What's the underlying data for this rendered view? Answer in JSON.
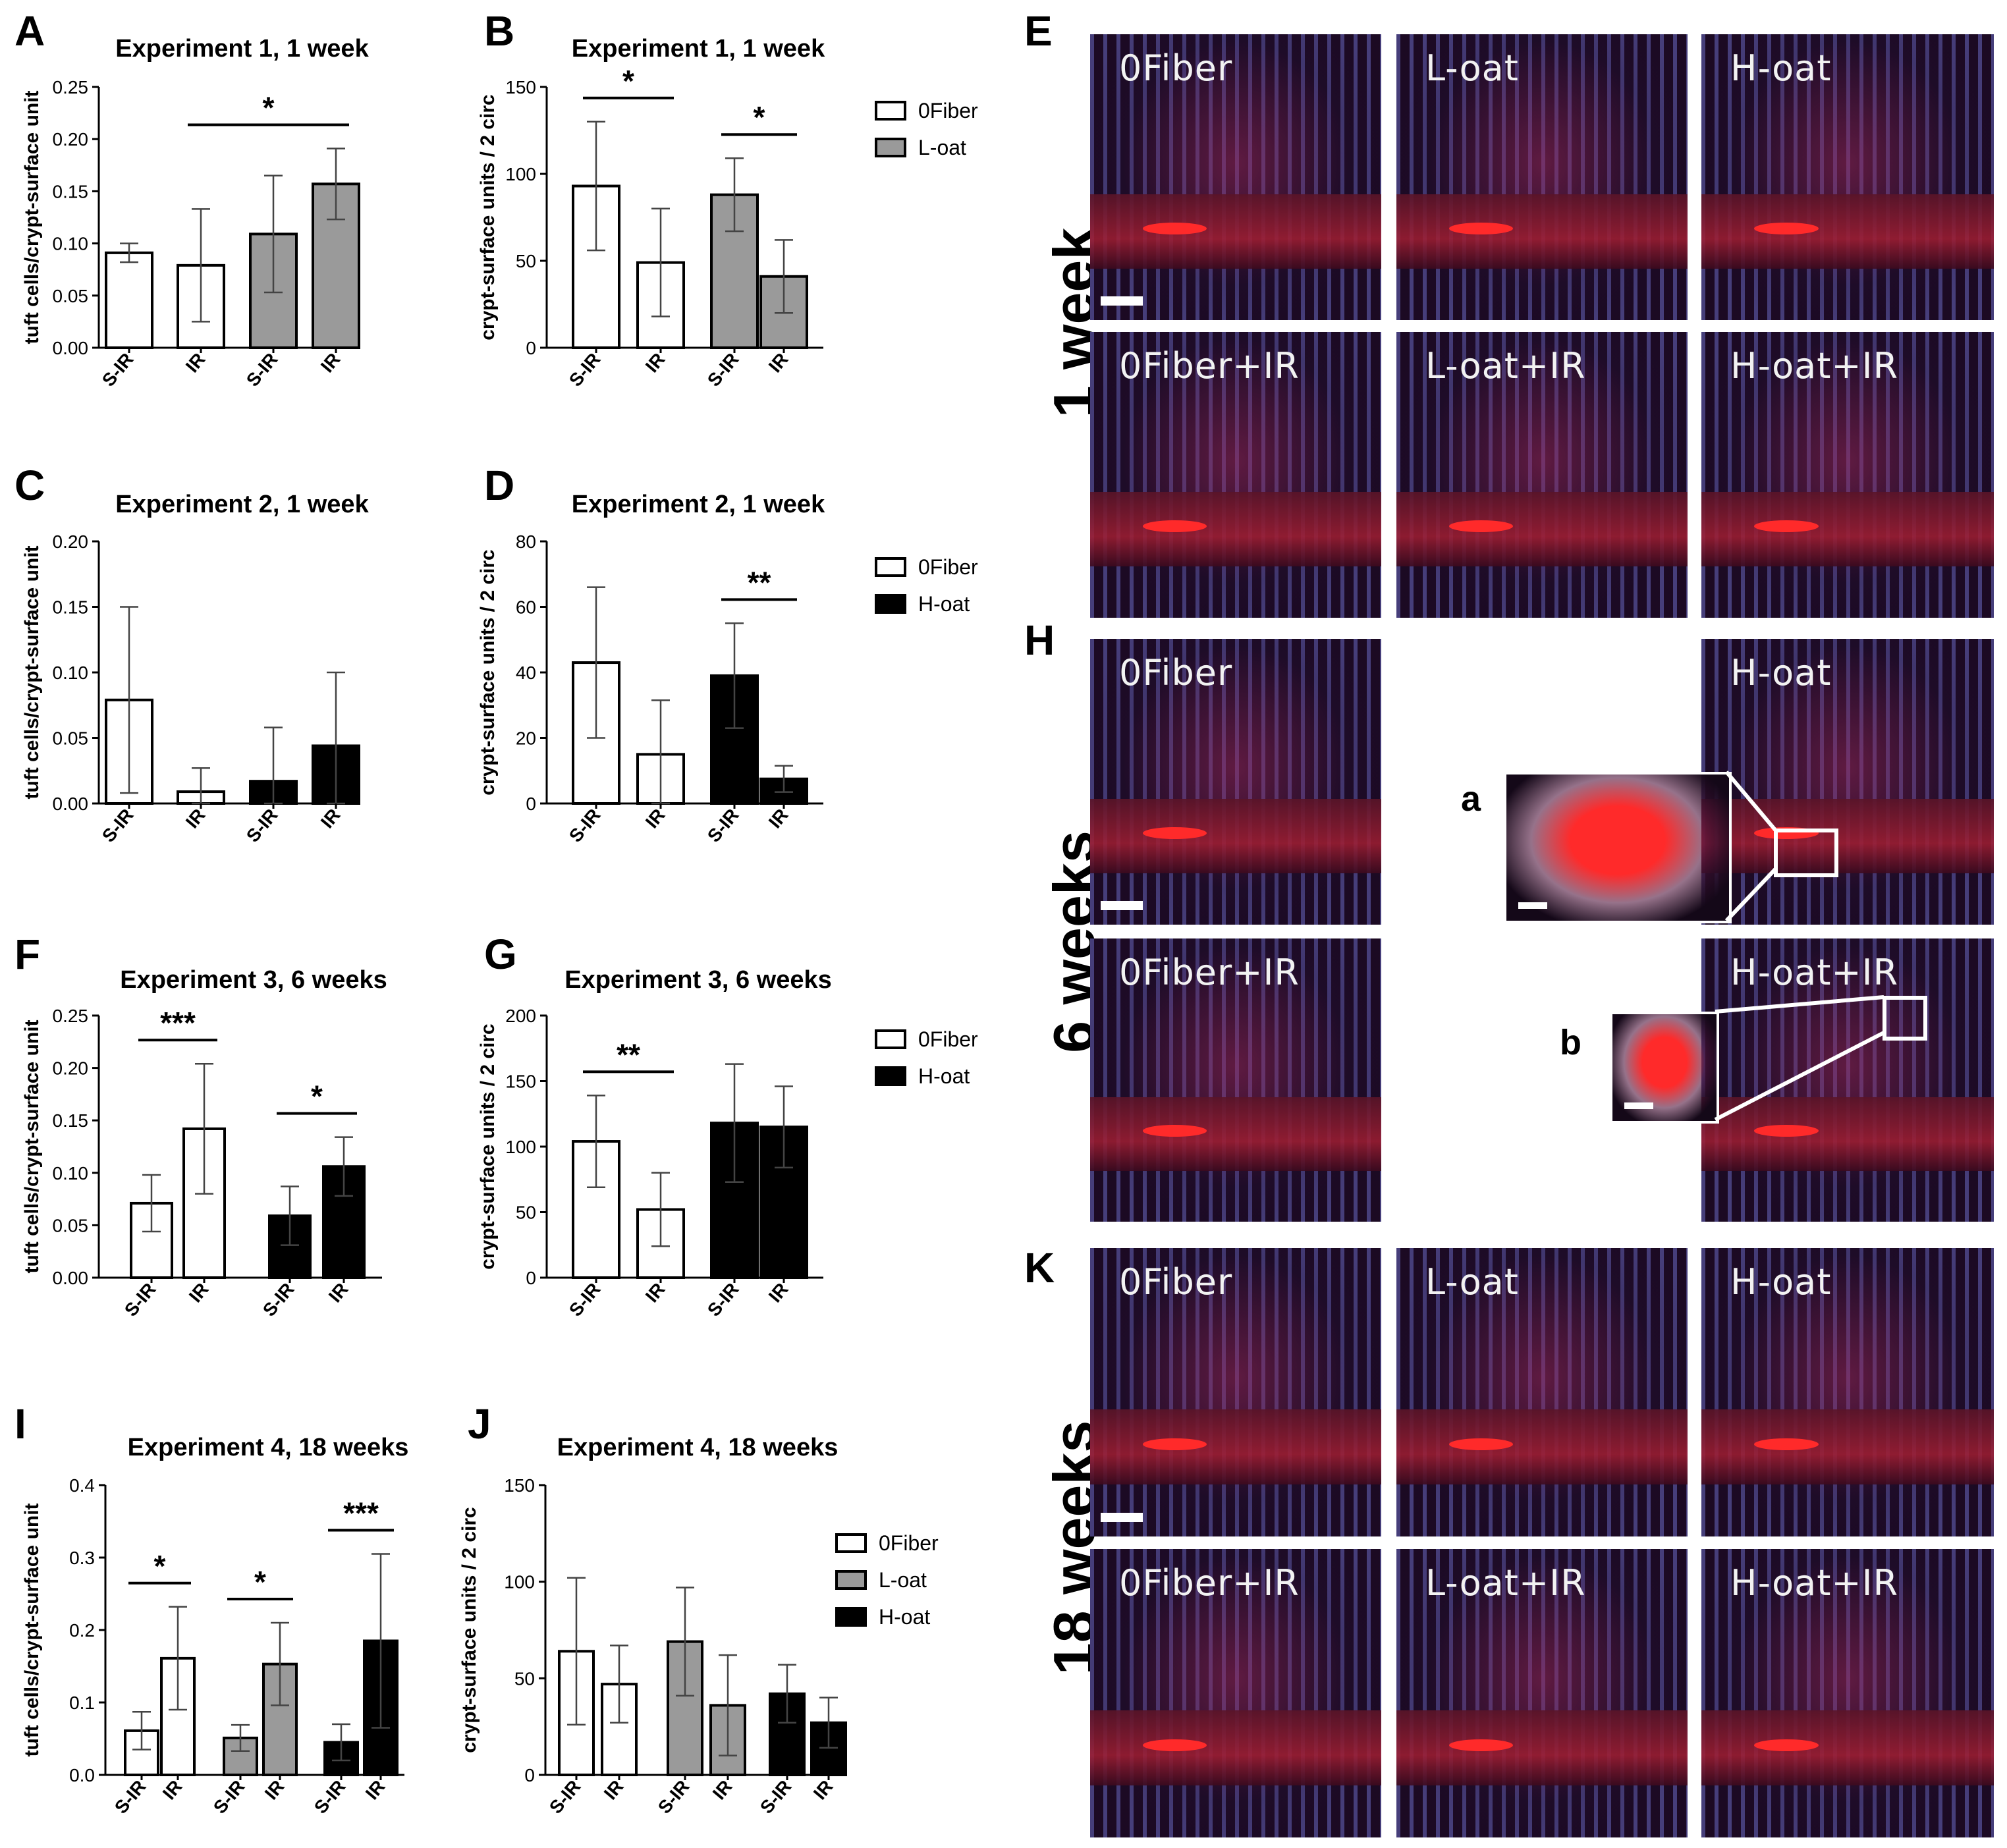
{
  "colors": {
    "white": "#ffffff",
    "gray": "#9a9a9a",
    "black": "#000000"
  },
  "panels": {
    "A": "A",
    "B": "B",
    "C": "C",
    "D": "D",
    "E": "E",
    "F": "F",
    "G": "G",
    "H": "H",
    "I": "I",
    "J": "J",
    "K": "K"
  },
  "row_labels": {
    "week1": "1 week",
    "week6": "6 weeks",
    "week18": "18 weeks"
  },
  "inset_labels": {
    "a": "a",
    "b": "b"
  },
  "chart_data": [
    {
      "id": "A",
      "type": "bar",
      "title": "Experiment 1, 1 week",
      "ylabel": "tuft cells/crypt-surface unit",
      "ylim": [
        0,
        0.25
      ],
      "yticks": [
        "0.00",
        "0.05",
        "0.10",
        "0.15",
        "0.20",
        "0.25"
      ],
      "categories": [
        "S-IR",
        "IR",
        "S-IR",
        "IR"
      ],
      "groups": [
        0,
        0,
        1,
        1
      ],
      "fills": [
        "white",
        "white",
        "gray",
        "gray"
      ],
      "values": [
        0.091,
        0.079,
        0.109,
        0.157
      ],
      "errors": [
        0.009,
        0.054,
        0.056,
        0.034
      ],
      "sig": [
        {
          "from": 1,
          "to": 3,
          "label": "*"
        }
      ]
    },
    {
      "id": "B",
      "type": "bar",
      "title": "Experiment 1, 1 week",
      "ylabel": "crypt-surface units / 2 circ",
      "ylim": [
        0,
        150
      ],
      "yticks": [
        "0",
        "50",
        "100",
        "150"
      ],
      "categories": [
        "S-IR",
        "IR",
        "S-IR",
        "IR"
      ],
      "groups": [
        0,
        0,
        1,
        1
      ],
      "fills": [
        "white",
        "white",
        "gray",
        "gray"
      ],
      "values": [
        93,
        49,
        88,
        41
      ],
      "errors": [
        37,
        31,
        21,
        21
      ],
      "sig": [
        {
          "from": 0,
          "to": 1,
          "label": "*"
        },
        {
          "from": 2,
          "to": 3,
          "label": "*"
        }
      ],
      "legend": [
        {
          "name": "0Fiber",
          "fill": "white"
        },
        {
          "name": "L-oat",
          "fill": "gray"
        }
      ]
    },
    {
      "id": "C",
      "type": "bar",
      "title": "Experiment 2, 1 week",
      "ylabel": "tuft cells/crypt-surface unit",
      "ylim": [
        0,
        0.2
      ],
      "yticks": [
        "0.00",
        "0.05",
        "0.10",
        "0.15",
        "0.20"
      ],
      "categories": [
        "S-IR",
        "IR",
        "S-IR",
        "IR"
      ],
      "groups": [
        0,
        0,
        1,
        1
      ],
      "fills": [
        "white",
        "white",
        "black",
        "black"
      ],
      "values": [
        0.079,
        0.009,
        0.017,
        0.044
      ],
      "errors": [
        0.071,
        0.018,
        0.041,
        0.056
      ],
      "sig": []
    },
    {
      "id": "D",
      "type": "bar",
      "title": "Experiment 2, 1 week",
      "ylabel": "crypt-surface units / 2 circ",
      "ylim": [
        0,
        80
      ],
      "yticks": [
        "0",
        "20",
        "40",
        "60",
        "80"
      ],
      "categories": [
        "S-IR",
        "IR",
        "S-IR",
        "IR"
      ],
      "groups": [
        0,
        0,
        1,
        1
      ],
      "fills": [
        "white",
        "white",
        "black",
        "black"
      ],
      "values": [
        43,
        15,
        39,
        7.5
      ],
      "errors": [
        23,
        16.5,
        16,
        4
      ],
      "sig": [
        {
          "from": 2,
          "to": 3,
          "label": "**"
        }
      ],
      "legend": [
        {
          "name": "0Fiber",
          "fill": "white"
        },
        {
          "name": "H-oat",
          "fill": "black"
        }
      ]
    },
    {
      "id": "F",
      "type": "bar",
      "title": "Experiment 3, 6 weeks",
      "ylabel": "tuft cells/crypt-surface unit",
      "ylim": [
        0,
        0.25
      ],
      "yticks": [
        "0.00",
        "0.05",
        "0.10",
        "0.15",
        "0.20",
        "0.25"
      ],
      "categories": [
        "S-IR",
        "IR",
        "S-IR",
        "IR"
      ],
      "groups": [
        0,
        0,
        1,
        1
      ],
      "fills": [
        "white",
        "white",
        "black",
        "black"
      ],
      "values": [
        0.071,
        0.142,
        0.059,
        0.106
      ],
      "errors": [
        0.027,
        0.062,
        0.028,
        0.028
      ],
      "sig": [
        {
          "from": 0,
          "to": 1,
          "label": "***"
        },
        {
          "from": 2,
          "to": 3,
          "label": "*"
        }
      ]
    },
    {
      "id": "G",
      "type": "bar",
      "title": "Experiment 3, 6 weeks",
      "ylabel": "crypt-surface units / 2 circ",
      "ylim": [
        0,
        200
      ],
      "yticks": [
        "0",
        "50",
        "100",
        "150",
        "200"
      ],
      "categories": [
        "S-IR",
        "IR",
        "S-IR",
        "IR"
      ],
      "groups": [
        0,
        0,
        1,
        1
      ],
      "fills": [
        "white",
        "white",
        "black",
        "black"
      ],
      "values": [
        104,
        52,
        118,
        115
      ],
      "errors": [
        35,
        28,
        45,
        31
      ],
      "sig": [
        {
          "from": 0,
          "to": 1,
          "label": "**"
        }
      ],
      "legend": [
        {
          "name": "0Fiber",
          "fill": "white"
        },
        {
          "name": "H-oat",
          "fill": "black"
        }
      ]
    },
    {
      "id": "I",
      "type": "bar",
      "title": "Experiment 4, 18 weeks",
      "ylabel": "tuft cells/crypt-surface unit",
      "ylim": [
        0,
        0.4
      ],
      "yticks": [
        "0.0",
        "0.1",
        "0.2",
        "0.3",
        "0.4"
      ],
      "categories": [
        "S-IR",
        "IR",
        "S-IR",
        "IR",
        "S-IR",
        "IR"
      ],
      "groups": [
        0,
        0,
        1,
        1,
        2,
        2
      ],
      "fills": [
        "white",
        "white",
        "gray",
        "gray",
        "black",
        "black"
      ],
      "values": [
        0.061,
        0.161,
        0.051,
        0.153,
        0.045,
        0.185
      ],
      "errors": [
        0.026,
        0.071,
        0.018,
        0.057,
        0.025,
        0.12
      ],
      "sig": [
        {
          "from": 0,
          "to": 1,
          "label": "*"
        },
        {
          "from": 2,
          "to": 3,
          "label": "*"
        },
        {
          "from": 4,
          "to": 5,
          "label": "***"
        }
      ]
    },
    {
      "id": "J",
      "type": "bar",
      "title": "Experiment 4, 18 weeks",
      "ylabel": "crypt-surface units / 2 circ",
      "ylim": [
        0,
        150
      ],
      "yticks": [
        "0",
        "50",
        "100",
        "150"
      ],
      "categories": [
        "S-IR",
        "IR",
        "S-IR",
        "IR",
        "S-IR",
        "IR"
      ],
      "groups": [
        0,
        0,
        1,
        1,
        2,
        2
      ],
      "fills": [
        "white",
        "white",
        "gray",
        "gray",
        "black",
        "black"
      ],
      "values": [
        64,
        47,
        69,
        36,
        42,
        27
      ],
      "errors": [
        38,
        20,
        28,
        26,
        15,
        13
      ],
      "sig": [],
      "legend": [
        {
          "name": "0Fiber",
          "fill": "white"
        },
        {
          "name": "L-oat",
          "fill": "gray"
        },
        {
          "name": "H-oat",
          "fill": "black"
        }
      ]
    }
  ],
  "micrographs": [
    {
      "label": "0Fiber",
      "scalebar": true
    },
    {
      "label": "L-oat"
    },
    {
      "label": "H-oat"
    },
    {
      "label": "0Fiber+IR"
    },
    {
      "label": "L-oat+IR"
    },
    {
      "label": "H-oat+IR"
    },
    {
      "label": "0Fiber",
      "scalebar": true
    },
    {
      "label": "H-oat"
    },
    {
      "label": "0Fiber+IR"
    },
    {
      "label": "H-oat+IR"
    },
    {
      "label": "0Fiber",
      "scalebar": true
    },
    {
      "label": "L-oat"
    },
    {
      "label": "H-oat"
    },
    {
      "label": "0Fiber+IR"
    },
    {
      "label": "L-oat+IR"
    },
    {
      "label": "H-oat+IR"
    }
  ]
}
